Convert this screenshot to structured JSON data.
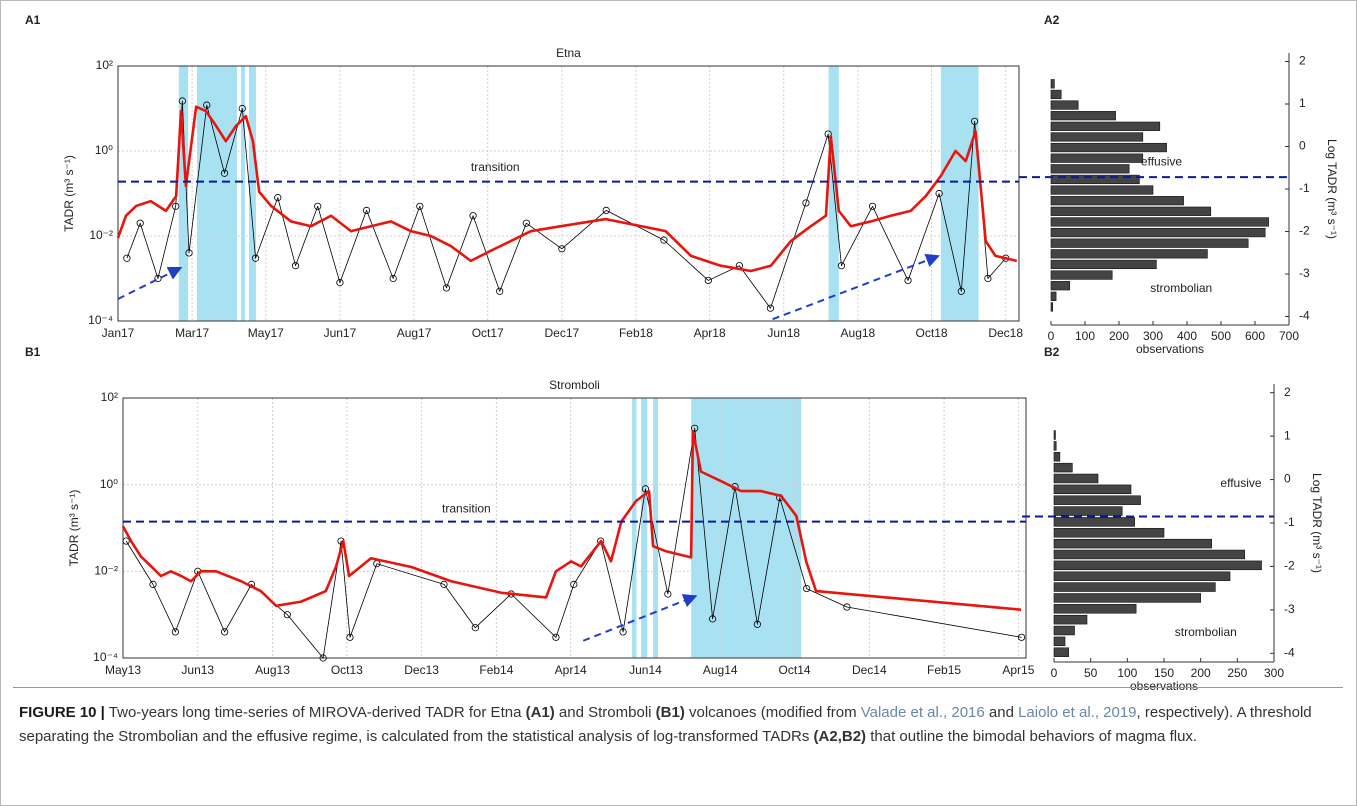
{
  "chart_data": [
    {
      "type": "timeseries",
      "panel_label": "A1",
      "title": "Etna",
      "ylabel": "TADR (m³ s⁻¹)",
      "log_y": true,
      "grid": true,
      "xlim": [
        2017.0,
        2019.03
      ],
      "ylim": [
        0.0001,
        100
      ],
      "xticks": [
        {
          "value": 2017.0,
          "label": "Jan17"
        },
        {
          "value": 2017.167,
          "label": "Mar17"
        },
        {
          "value": 2017.333,
          "label": "May17"
        },
        {
          "value": 2017.5,
          "label": "Jun17"
        },
        {
          "value": 2017.667,
          "label": "Aug17"
        },
        {
          "value": 2017.833,
          "label": "Oct17"
        },
        {
          "value": 2018.0,
          "label": "Dec17"
        },
        {
          "value": 2018.167,
          "label": "Feb18"
        },
        {
          "value": 2018.333,
          "label": "Apr18"
        },
        {
          "value": 2018.5,
          "label": "Jun18"
        },
        {
          "value": 2018.667,
          "label": "Aug18"
        },
        {
          "value": 2018.833,
          "label": "Oct18"
        },
        {
          "value": 2019.0,
          "label": "Dec18"
        }
      ],
      "yticks": [
        {
          "value": 0.0001,
          "label": "10⁻⁴"
        },
        {
          "value": 0.01,
          "label": "10⁻²"
        },
        {
          "value": 1,
          "label": "10⁰"
        },
        {
          "value": 100,
          "label": "10²"
        }
      ],
      "span_color": "#a8e2f2",
      "spans": [
        [
          2017.137,
          2017.158
        ],
        [
          2017.178,
          2017.268
        ],
        [
          2017.277,
          2017.286
        ],
        [
          2017.295,
          2017.311
        ],
        [
          2018.601,
          2018.624
        ],
        [
          2018.854,
          2018.939
        ]
      ],
      "series": [
        {
          "color": "#000000",
          "marker": "circle",
          "x": [
            2017.02,
            2017.05,
            2017.09,
            2017.13,
            2017.145,
            2017.16,
            2017.2,
            2017.24,
            2017.28,
            2017.31,
            2017.36,
            2017.4,
            2017.45,
            2017.5,
            2017.56,
            2017.62,
            2017.68,
            2017.74,
            2017.8,
            2017.86,
            2017.92,
            2018.0,
            2018.1,
            2018.23,
            2018.33,
            2018.4,
            2018.47,
            2018.55,
            2018.6,
            2018.63,
            2018.7,
            2018.78,
            2018.85,
            2018.9,
            2018.93,
            2018.96,
            2019.0
          ],
          "values": [
            0.003,
            0.02,
            0.001,
            0.05,
            15,
            0.004,
            12,
            0.3,
            10,
            0.003,
            0.08,
            0.002,
            0.05,
            0.0008,
            0.04,
            0.001,
            0.05,
            0.0006,
            0.03,
            0.0005,
            0.02,
            0.005,
            0.04,
            0.008,
            0.0009,
            0.002,
            0.0002,
            0.06,
            2.5,
            0.002,
            0.05,
            0.0009,
            0.1,
            0.0005,
            5,
            0.001,
            0.003
          ]
        },
        {
          "color": "#e8150f",
          "marker": "none",
          "x": [
            2017.0,
            2017.018,
            2017.041,
            2017.074,
            2017.108,
            2017.131,
            2017.142,
            2017.153,
            2017.176,
            2017.198,
            2017.221,
            2017.243,
            2017.266,
            2017.288,
            2017.304,
            2017.318,
            2017.345,
            2017.39,
            2017.435,
            2017.48,
            2017.525,
            2017.57,
            2017.615,
            2017.66,
            2017.705,
            2017.75,
            2017.795,
            2017.84,
            2017.885,
            2017.93,
            2017.998,
            2018.099,
            2018.234,
            2018.291,
            2018.358,
            2018.426,
            2018.471,
            2018.516,
            2018.561,
            2018.595,
            2018.606,
            2018.624,
            2018.651,
            2018.696,
            2018.741,
            2018.786,
            2018.82,
            2018.854,
            2018.887,
            2018.91,
            2018.932,
            2018.955,
            2018.977,
            2019.025
          ],
          "values": [
            0.009,
            0.03,
            0.051,
            0.066,
            0.039,
            0.087,
            8.7,
            0.15,
            11,
            8.7,
            3.9,
            1.7,
            3.9,
            6.6,
            1.7,
            0.11,
            0.051,
            0.022,
            0.017,
            0.03,
            0.013,
            0.017,
            0.022,
            0.013,
            0.01,
            0.0058,
            0.0026,
            0.0045,
            0.0076,
            0.013,
            0.017,
            0.025,
            0.013,
            0.0034,
            0.002,
            0.0015,
            0.002,
            0.0076,
            0.017,
            0.03,
            2.2,
            0.039,
            0.017,
            0.022,
            0.03,
            0.039,
            0.087,
            0.26,
            1.0,
            0.58,
            2.9,
            0.0076,
            0.0034,
            0.0026
          ]
        }
      ],
      "hline": {
        "value": 0.19,
        "color": "#0a1a9c",
        "label": "transition",
        "label_x": 2017.85,
        "label_y": 0.4
      },
      "arrow_color": "#1f3fc8",
      "arrows": [
        {
          "x": [
            2017.0,
            2017.142
          ],
          "y": [
            0.00033,
            0.0018
          ]
        },
        {
          "x": [
            2018.475,
            2018.849
          ],
          "y": [
            0.00011,
            0.0034
          ]
        }
      ]
    },
    {
      "type": "histogram",
      "panel_label": "A2",
      "xlabel": "observations",
      "ylabel": "Log TADR (m³ s⁻¹)",
      "color": "#444444",
      "xlim": [
        0,
        700
      ],
      "ylim": [
        -4.2,
        2.2
      ],
      "xticks": [
        0,
        100,
        200,
        300,
        400,
        500,
        600,
        700
      ],
      "yticks": [
        -4,
        -3,
        -2,
        -1,
        0,
        1,
        2
      ],
      "bins": [
        -3.9,
        -3.65,
        -3.4,
        -3.15,
        -2.9,
        -2.65,
        -2.4,
        -2.15,
        -1.9,
        -1.65,
        -1.4,
        -1.15,
        -0.9,
        -0.65,
        -0.4,
        -0.15,
        0.1,
        0.35,
        0.6,
        0.85,
        1.1,
        1.35,
        1.6
      ],
      "values": [
        5,
        15,
        55,
        180,
        310,
        460,
        580,
        630,
        640,
        470,
        390,
        300,
        260,
        230,
        270,
        340,
        270,
        320,
        190,
        80,
        30,
        10
      ],
      "hline": {
        "value": -0.72,
        "color": "#0a1a9c"
      },
      "annotations": [
        {
          "text": "effusive",
          "x": 325,
          "y": -0.37,
          "color": "#e8150f"
        },
        {
          "text": "strombolian",
          "x": 383,
          "y": -3.35,
          "color": "#e8150f"
        }
      ]
    },
    {
      "type": "timeseries",
      "panel_label": "B1",
      "title": "Stromboli",
      "ylabel": "TADR (m³ s⁻¹)",
      "log_y": true,
      "grid": true,
      "xlim": [
        2013.333,
        2015.35
      ],
      "ylim": [
        0.0001,
        100
      ],
      "xticks": [
        {
          "value": 2013.333,
          "label": "May13"
        },
        {
          "value": 2013.5,
          "label": "Jun13"
        },
        {
          "value": 2013.667,
          "label": "Aug13"
        },
        {
          "value": 2013.833,
          "label": "Oct13"
        },
        {
          "value": 2014.0,
          "label": "Dec13"
        },
        {
          "value": 2014.167,
          "label": "Feb14"
        },
        {
          "value": 2014.333,
          "label": "Apr14"
        },
        {
          "value": 2014.5,
          "label": "Jun14"
        },
        {
          "value": 2014.667,
          "label": "Aug14"
        },
        {
          "value": 2014.833,
          "label": "Oct14"
        },
        {
          "value": 2015.0,
          "label": "Dec14"
        },
        {
          "value": 2015.167,
          "label": "Feb15"
        },
        {
          "value": 2015.333,
          "label": "Apr15"
        }
      ],
      "yticks": [
        {
          "value": 0.0001,
          "label": "10⁻⁴"
        },
        {
          "value": 0.01,
          "label": "10⁻²"
        },
        {
          "value": 1,
          "label": "10⁰"
        },
        {
          "value": 100,
          "label": "10²"
        }
      ],
      "span_color": "#a8e2f2",
      "spans": [
        [
          2014.47,
          2014.48
        ],
        [
          2014.49,
          2014.504
        ],
        [
          2014.517,
          2014.528
        ],
        [
          2014.602,
          2014.848
        ]
      ],
      "series": [
        {
          "color": "#000000",
          "marker": "circle",
          "x": [
            2013.34,
            2013.4,
            2013.45,
            2013.5,
            2013.56,
            2013.62,
            2013.7,
            2013.78,
            2013.82,
            2013.84,
            2013.9,
            2014.05,
            2014.12,
            2014.2,
            2014.3,
            2014.34,
            2014.4,
            2014.45,
            2014.5,
            2014.55,
            2014.61,
            2014.65,
            2014.7,
            2014.75,
            2014.8,
            2014.86,
            2014.95,
            2015.34
          ],
          "values": [
            0.05,
            0.005,
            0.0004,
            0.01,
            0.0004,
            0.005,
            0.001,
            0.0001,
            0.05,
            0.0003,
            0.015,
            0.005,
            0.0005,
            0.003,
            0.0003,
            0.005,
            0.05,
            0.0004,
            0.8,
            0.003,
            20,
            0.0008,
            0.9,
            0.0006,
            0.5,
            0.004,
            0.0015,
            0.0003
          ]
        },
        {
          "color": "#e8150f",
          "marker": "none",
          "x": [
            2013.333,
            2013.351,
            2013.373,
            2013.396,
            2013.418,
            2013.44,
            2013.463,
            2013.485,
            2013.507,
            2013.541,
            2013.597,
            2013.641,
            2013.675,
            2013.731,
            2013.786,
            2013.809,
            2013.825,
            2013.838,
            2013.887,
            2013.977,
            2014.066,
            2014.178,
            2014.278,
            2014.3,
            2014.334,
            2014.356,
            2014.401,
            2014.423,
            2014.446,
            2014.479,
            2014.508,
            2014.517,
            2014.546,
            2014.602,
            2014.606,
            2014.624,
            2014.669,
            2014.714,
            2014.758,
            2014.803,
            2014.837,
            2014.859,
            2014.881,
            2015.339
          ],
          "values": [
            0.11,
            0.05,
            0.022,
            0.013,
            0.0078,
            0.01,
            0.0078,
            0.0059,
            0.01,
            0.01,
            0.0059,
            0.0035,
            0.0016,
            0.002,
            0.0035,
            0.013,
            0.05,
            0.0078,
            0.02,
            0.0126,
            0.0059,
            0.0032,
            0.0025,
            0.01,
            0.017,
            0.013,
            0.05,
            0.017,
            0.14,
            0.42,
            0.71,
            0.038,
            0.029,
            0.021,
            17,
            2.0,
            1.2,
            0.71,
            0.71,
            0.55,
            0.19,
            0.017,
            0.0035,
            0.0013
          ]
        }
      ],
      "hline": {
        "value": 0.14,
        "color": "#0a1a9c",
        "label": "transition",
        "label_x": 2014.1,
        "label_y": 0.27
      },
      "arrow_color": "#1f3fc8",
      "arrows": [
        {
          "x": [
            2014.361,
            2014.613
          ],
          "y": [
            0.00025,
            0.0027
          ]
        }
      ]
    },
    {
      "type": "histogram",
      "panel_label": "B2",
      "xlabel": "observations",
      "ylabel": "Log TADR (m³ s⁻¹)",
      "color": "#444444",
      "xlim": [
        0,
        300
      ],
      "ylim": [
        -4.2,
        2.2
      ],
      "xticks": [
        0,
        50,
        100,
        150,
        200,
        250,
        300
      ],
      "yticks": [
        -4,
        -3,
        -2,
        -1,
        0,
        1,
        2
      ],
      "bins": [
        -4.1,
        -3.85,
        -3.6,
        -3.35,
        -3.1,
        -2.85,
        -2.6,
        -2.35,
        -2.1,
        -1.85,
        -1.6,
        -1.35,
        -1.1,
        -0.85,
        -0.6,
        -0.35,
        -0.1,
        0.15,
        0.4,
        0.65,
        0.9,
        1.15
      ],
      "values": [
        20,
        15,
        28,
        45,
        112,
        200,
        220,
        240,
        283,
        260,
        215,
        150,
        110,
        93,
        118,
        105,
        60,
        25,
        8,
        3,
        2
      ],
      "hline": {
        "value": -0.85,
        "color": "#0a1a9c"
      },
      "annotations": [
        {
          "text": "effusive",
          "x": 255,
          "y": -0.1,
          "color": "#e8150f"
        },
        {
          "text": "strombolian",
          "x": 207,
          "y": -3.53,
          "color": "#e8150f"
        }
      ]
    }
  ],
  "caption": {
    "label": "FIGURE 10 |",
    "parts": [
      {
        "text": " Two-years long time-series of MIROVA-derived TADR for Etna "
      },
      {
        "text": "(A1)",
        "style": "bold"
      },
      {
        "text": " and Stromboli "
      },
      {
        "text": "(B1)",
        "style": "bold"
      },
      {
        "text": " volcanoes (modified from "
      },
      {
        "text": "Valade et al., 2016",
        "style": "link"
      },
      {
        "text": " and "
      },
      {
        "text": "Laiolo et al., 2019",
        "style": "link"
      },
      {
        "text": ", respectively). A threshold separating the Strombolian and the effusive regime, is calculated from the statistical analysis of log-transformed TADRs "
      },
      {
        "text": "(A2,B2)",
        "style": "bold"
      },
      {
        "text": " that outline the bimodal behaviors of magma flux."
      }
    ]
  }
}
